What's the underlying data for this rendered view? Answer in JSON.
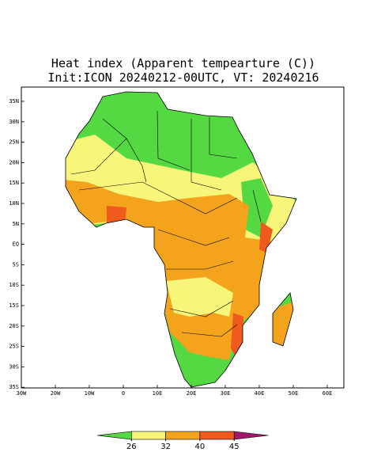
{
  "map": {
    "title": "Heat index (Apparent tempearture (C))",
    "subtitle": "Init:ICON 20240212-00UTC, VT: 20240216",
    "lon_labels": [
      "30W",
      "20W",
      "10W",
      "0",
      "10E",
      "20E",
      "30E",
      "40E",
      "50E",
      "60E"
    ],
    "lat_labels": [
      "35N",
      "30N",
      "25N",
      "20N",
      "15N",
      "10N",
      "5N",
      "EQ",
      "5S",
      "10S",
      "15S",
      "20S",
      "25S",
      "30S",
      "35S"
    ],
    "colorbar": {
      "ticks": [
        26,
        32,
        40,
        45
      ],
      "colors": [
        "#55d943",
        "#f8f67a",
        "#f4a41c",
        "#f05a1c",
        "#a0186a"
      ]
    }
  }
}
